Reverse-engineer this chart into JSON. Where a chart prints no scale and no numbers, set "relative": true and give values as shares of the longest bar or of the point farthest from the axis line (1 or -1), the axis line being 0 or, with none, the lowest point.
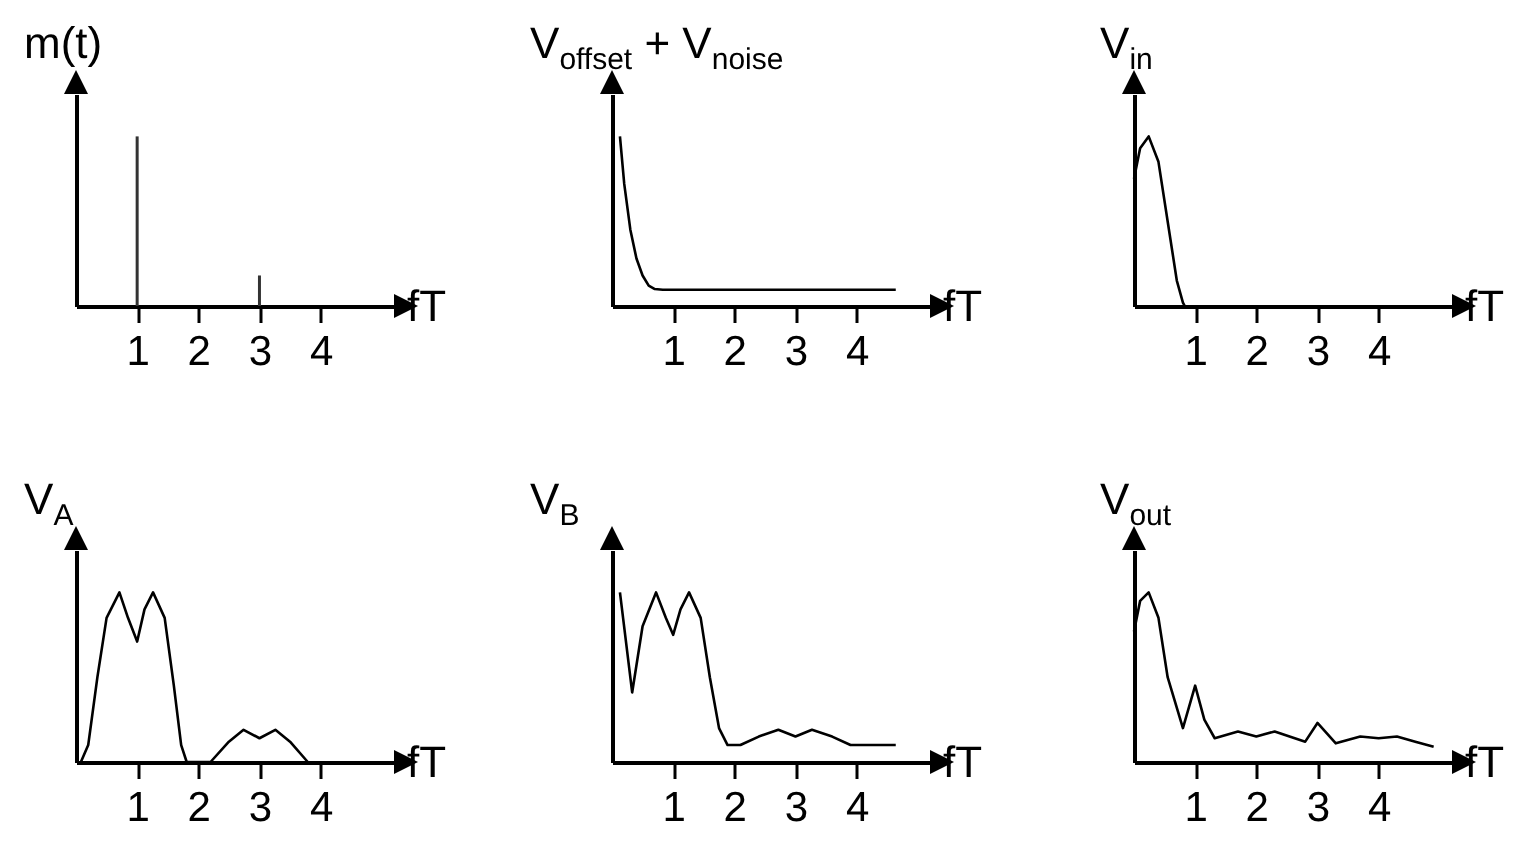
{
  "chart_data": [
    {
      "type": "bar",
      "ylabel": "m(t)",
      "xlabel": "fT",
      "relative": true,
      "color": "#333333",
      "xlim": [
        0,
        5.2
      ],
      "xticks": [
        1,
        2,
        3,
        4
      ],
      "x": [
        1,
        3
      ],
      "values": [
        1,
        0.18
      ]
    },
    {
      "type": "line",
      "ylabel": "V$_{offset}$ + V$_{noise}$",
      "xlabel": "fT",
      "relative": true,
      "color": "#000000",
      "xlim": [
        0,
        5.2
      ],
      "xticks": [
        1,
        2,
        3,
        4
      ],
      "x": [
        0.13,
        0.2,
        0.3,
        0.4,
        0.5,
        0.6,
        0.7,
        0.83,
        4.64
      ],
      "values": [
        1,
        0.72,
        0.45,
        0.28,
        0.18,
        0.12,
        0.1,
        0.096,
        0.096
      ]
    },
    {
      "type": "line",
      "ylabel": "V$_{in}$",
      "xlabel": "fT",
      "relative": true,
      "color": "#000000",
      "xlim": [
        0,
        5.2
      ],
      "xticks": [
        1,
        2,
        3,
        4
      ],
      "x": [
        0,
        0.1,
        0.24,
        0.4,
        0.55,
        0.7,
        0.8,
        0.83
      ],
      "values": [
        0.75,
        0.93,
        1,
        0.85,
        0.5,
        0.15,
        0.02,
        0
      ]
    },
    {
      "type": "line",
      "ylabel": "V$_{A}$",
      "xlabel": "fT",
      "relative": true,
      "color": "#000000",
      "xlim": [
        0,
        5.2
      ],
      "xticks": [
        1,
        2,
        3,
        4
      ],
      "x": [
        0.08,
        0.2,
        0.35,
        0.5,
        0.71,
        0.85,
        1,
        1.12,
        1.26,
        1.45,
        1.6,
        1.72,
        1.81,
        2.2,
        2.5,
        2.74,
        3,
        3.26,
        3.5,
        3.79
      ],
      "values": [
        0,
        0.1,
        0.5,
        0.85,
        1,
        0.85,
        0.71,
        0.9,
        1,
        0.85,
        0.45,
        0.1,
        0,
        0,
        0.12,
        0.19,
        0.14,
        0.19,
        0.12,
        0
      ]
    },
    {
      "type": "line",
      "ylabel": "V$_{B}$",
      "xlabel": "fT",
      "relative": true,
      "color": "#000000",
      "xlim": [
        0,
        5.2
      ],
      "xticks": [
        1,
        2,
        3,
        4
      ],
      "x": [
        0.13,
        0.33,
        0.5,
        0.72,
        0.88,
        1,
        1.12,
        1.26,
        1.45,
        1.6,
        1.75,
        1.89,
        2.1,
        2.4,
        2.72,
        3,
        3.27,
        3.6,
        3.9,
        4.64
      ],
      "values": [
        1,
        0.41,
        0.8,
        1,
        0.85,
        0.75,
        0.9,
        1,
        0.85,
        0.5,
        0.2,
        0.1,
        0.1,
        0.15,
        0.19,
        0.15,
        0.19,
        0.15,
        0.1,
        0.1
      ]
    },
    {
      "type": "line",
      "ylabel": "V$_{out}$",
      "xlabel": "fT",
      "relative": true,
      "color": "#000000",
      "xlim": [
        0,
        5.2
      ],
      "xticks": [
        1,
        2,
        3,
        4
      ],
      "x": [
        0,
        0.1,
        0.24,
        0.4,
        0.55,
        0.8,
        1,
        1.15,
        1.32,
        1.7,
        2,
        2.3,
        2.8,
        3,
        3.3,
        3.7,
        4,
        4.3,
        4.6,
        4.9
      ],
      "values": [
        0.77,
        0.95,
        1,
        0.85,
        0.5,
        0.2,
        0.45,
        0.25,
        0.14,
        0.18,
        0.15,
        0.18,
        0.12,
        0.23,
        0.11,
        0.15,
        0.14,
        0.15,
        0.12,
        0.09
      ]
    }
  ]
}
